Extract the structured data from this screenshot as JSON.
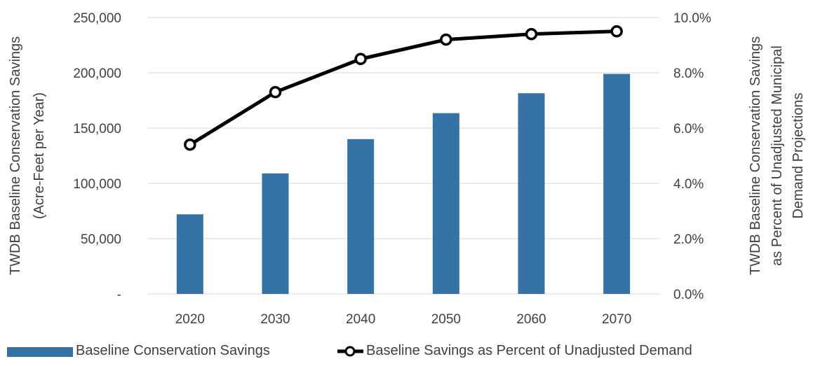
{
  "chart_data": {
    "type": "bar+line",
    "categories": [
      "2020",
      "2030",
      "2040",
      "2050",
      "2060",
      "2070"
    ],
    "series": [
      {
        "name": "Baseline Conservation Savings",
        "type": "bar",
        "axis": "left",
        "values": [
          72000,
          109000,
          140000,
          163500,
          181500,
          199000
        ]
      },
      {
        "name": "Baseline Savings as Percent of Unadjusted Demand",
        "type": "line",
        "axis": "right",
        "values": [
          5.4,
          7.3,
          8.5,
          9.2,
          9.4,
          9.5
        ]
      }
    ],
    "ylabel_left": [
      "TWDB Baseline Conservation Savings",
      "(Acre-Feet per Year)"
    ],
    "ylabel_right": [
      "TWDB Baseline Conservation Savings",
      "as Percent of Unadjusted Municipal",
      "Demand Projections"
    ],
    "ylim_left": [
      0,
      250000
    ],
    "ylim_right": [
      0,
      10
    ],
    "yticks_left": [
      "-",
      "50,000",
      "100,000",
      "150,000",
      "200,000",
      "250,000"
    ],
    "yticks_right": [
      "0.0%",
      "2.0%",
      "4.0%",
      "6.0%",
      "8.0%",
      "10.0%"
    ],
    "grid": true,
    "legend_position": "bottom",
    "colors": {
      "bar": "#3572a5",
      "line": "#000000",
      "grid": "#d9d9d9",
      "text": "#404040"
    }
  }
}
